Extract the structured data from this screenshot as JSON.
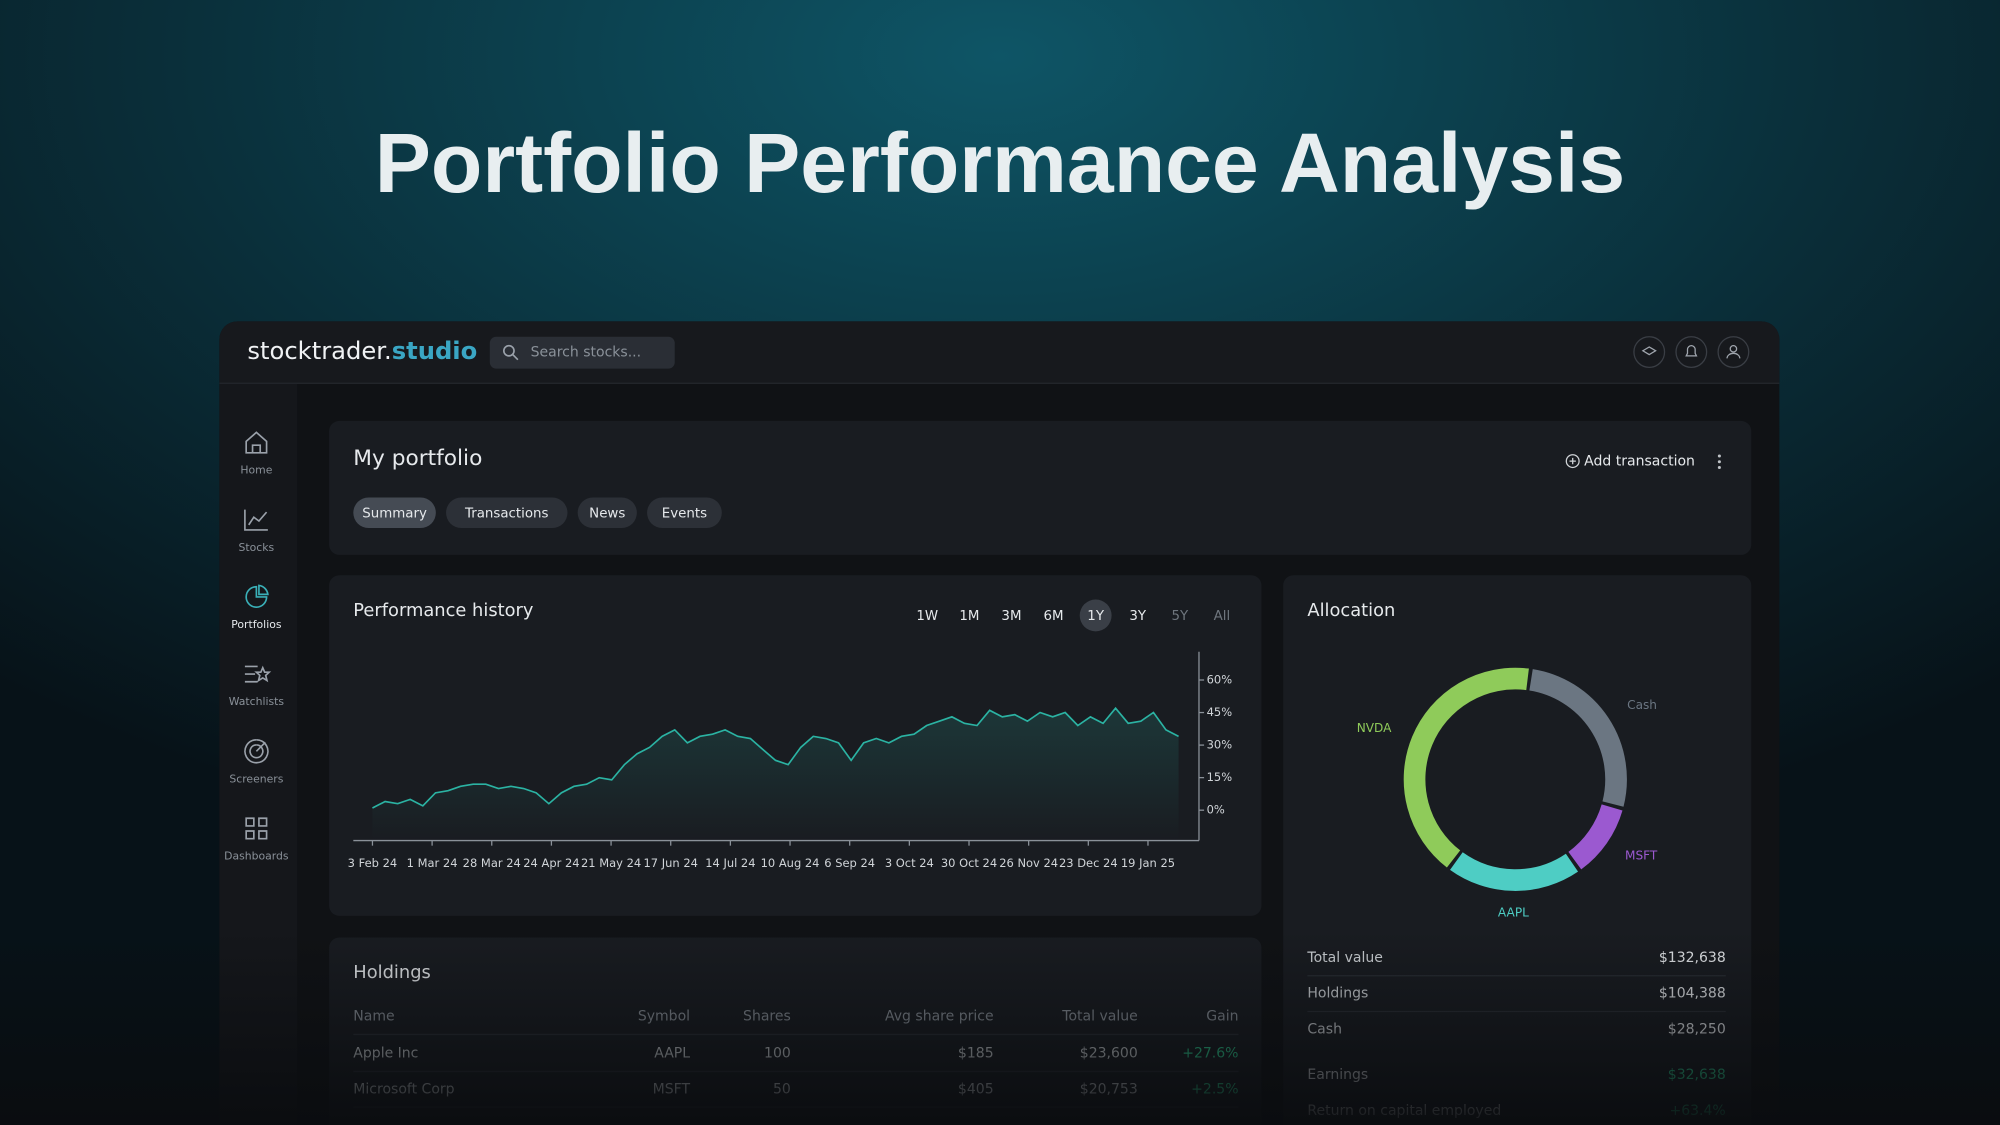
{
  "title": "Portfolio Performance Analysis",
  "app": {
    "logo": {
      "main": "stocktrader.",
      "accent": "studio"
    },
    "search_placeholder": "Search stocks...",
    "nav": {
      "items": [
        "Home",
        "Stocks",
        "Portfolios",
        "Watchlists",
        "Screeners",
        "Dashboards"
      ],
      "active": "Portfolios"
    },
    "portfolio": {
      "title": "My portfolio",
      "tabs": [
        "Summary",
        "Transactions",
        "News",
        "Events"
      ],
      "active_tab": "Summary",
      "add_transaction": "Add transaction"
    },
    "performance": {
      "type": "line",
      "title": "Performance history",
      "ranges": [
        "1W",
        "1M",
        "3M",
        "6M",
        "1Y",
        "3Y",
        "5Y",
        "All"
      ],
      "active_range": "1Y",
      "disabled_ranges": [
        "5Y",
        "All"
      ],
      "categories": [
        "3 Feb 24",
        "1 Mar 24",
        "28 Mar 24",
        "24 Apr 24",
        "21 May 24",
        "17 Jun 24",
        "14 Jul 24",
        "10 Aug 24",
        "6 Sep 24",
        "3 Oct 24",
        "30 Oct 24",
        "26 Nov 24",
        "23 Dec 24",
        "19 Jan 25"
      ],
      "values": [
        1,
        4,
        3,
        5,
        2,
        8,
        9,
        11,
        12,
        12,
        10,
        11,
        10,
        8,
        3,
        8,
        11,
        12,
        15,
        14,
        21,
        26,
        29,
        34,
        37,
        31,
        34,
        35,
        37,
        34,
        33,
        28,
        23,
        21,
        29,
        34,
        33,
        31,
        23,
        31,
        33,
        31,
        34,
        35,
        39,
        41,
        43,
        40,
        39,
        46,
        43,
        44,
        41,
        45,
        43,
        45,
        39,
        43,
        40,
        47,
        40,
        41,
        45,
        37,
        34
      ],
      "color": "#2bb3a3",
      "ylim": [
        -14,
        73
      ],
      "yticks": [
        {
          "value": 0,
          "label": "0%"
        },
        {
          "value": 15,
          "label": "15%"
        },
        {
          "value": 30,
          "label": "30%"
        },
        {
          "value": 45,
          "label": "45%"
        },
        {
          "value": 60,
          "label": "60%"
        }
      ]
    },
    "allocation": {
      "type": "donut",
      "title": "Allocation",
      "categories": [
        "Cash",
        "MSFT",
        "AAPL",
        "NVDA"
      ],
      "values": [
        27,
        11,
        20,
        42
      ],
      "colors": [
        "#6b7682",
        "#9b59d0",
        "#4ecdc4",
        "#8fcb5a"
      ]
    },
    "summary": {
      "rows": [
        [
          "Total value",
          "$132,638"
        ],
        [
          "Holdings",
          "$104,388"
        ],
        [
          "Cash",
          "$28,250"
        ],
        [
          "Earnings",
          "$32,638"
        ],
        [
          "Return on capital employed",
          "+63.4%"
        ]
      ]
    },
    "holdings": {
      "title": "Holdings",
      "columns": [
        "Name",
        "Symbol",
        "Shares",
        "Avg share price",
        "Total value",
        "Gain"
      ],
      "rows": [
        [
          "Apple Inc",
          "AAPL",
          "100",
          "$185",
          "$23,600",
          "+27.6%"
        ],
        [
          "Microsoft Corp",
          "MSFT",
          "50",
          "$405",
          "$20,753",
          "+2.5%"
        ]
      ]
    }
  }
}
